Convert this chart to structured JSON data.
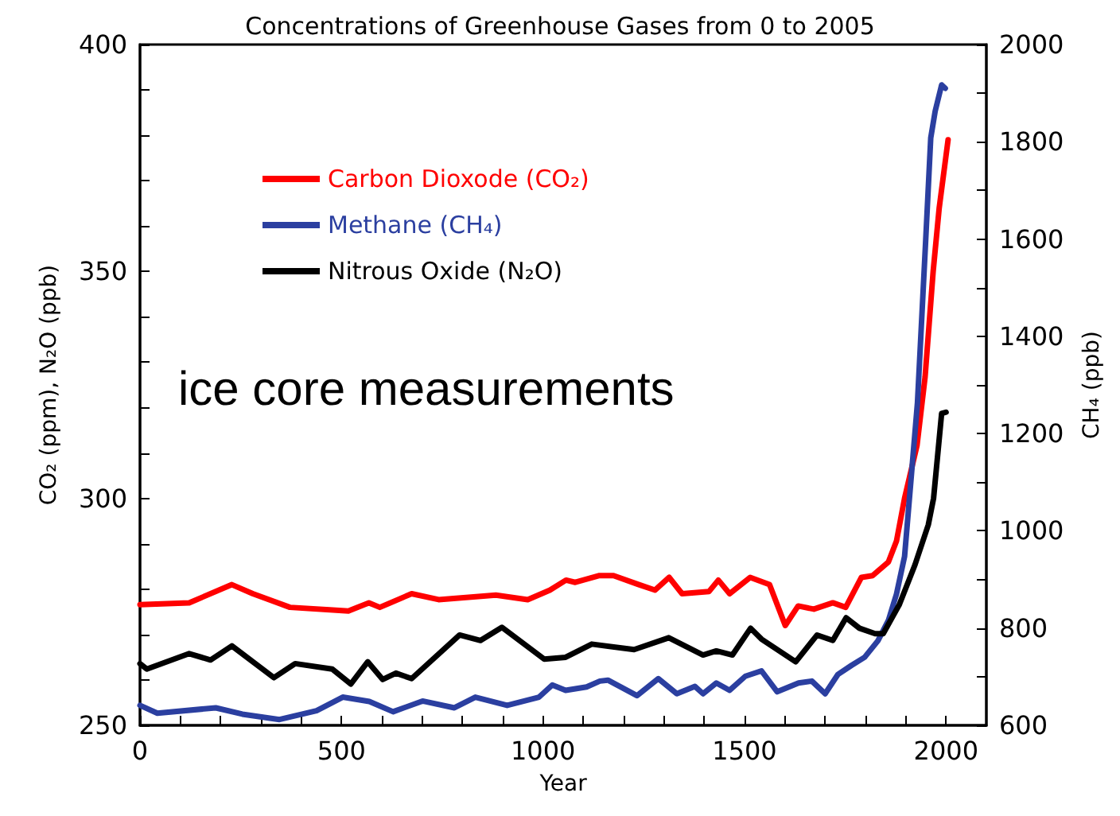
{
  "chart_data": {
    "type": "line",
    "title": "Concentrations of Greenhouse Gases from 0 to 2005",
    "xlabel": "Year",
    "ylabel": "CO₂ (ppm), N₂O (ppb)",
    "y2label": "CH₄ (ppb)",
    "annotations": [
      "ice core measurements"
    ],
    "xlim": [
      0,
      2100
    ],
    "xticks": [
      0,
      {
        "value": 100,
        "label": null
      },
      {
        "value": 200,
        "label": null
      },
      {
        "value": 300,
        "label": null
      },
      {
        "value": 400,
        "label": null
      },
      500,
      {
        "value": 600,
        "label": null
      },
      {
        "value": 700,
        "label": null
      },
      {
        "value": 800,
        "label": null
      },
      {
        "value": 900,
        "label": null
      },
      1000,
      {
        "value": 1100,
        "label": null
      },
      {
        "value": 1200,
        "label": null
      },
      {
        "value": 1300,
        "label": null
      },
      {
        "value": 1400,
        "label": null
      },
      1500,
      {
        "value": 1600,
        "label": null
      },
      {
        "value": 1700,
        "label": null
      },
      {
        "value": 1800,
        "label": null
      },
      {
        "value": 1900,
        "label": null
      },
      2000
    ],
    "ylim": [
      250,
      400
    ],
    "yticks": [
      250,
      {
        "value": 260,
        "label": null
      },
      {
        "value": 270,
        "label": null
      },
      {
        "value": 280,
        "label": null
      },
      {
        "value": 290,
        "label": null
      },
      300,
      {
        "value": 310,
        "label": null
      },
      {
        "value": 320,
        "label": null
      },
      {
        "value": 330,
        "label": null
      },
      {
        "value": 340,
        "label": null
      },
      350,
      {
        "value": 360,
        "label": null
      },
      {
        "value": 370,
        "label": null
      },
      {
        "value": 380,
        "label": null
      },
      {
        "value": 390,
        "label": null
      },
      400
    ],
    "y2lim": [
      600,
      2000
    ],
    "y2ticks": [
      600,
      {
        "value": 700,
        "label": null
      },
      800,
      {
        "value": 900,
        "label": null
      },
      1000,
      {
        "value": 1100,
        "label": null
      },
      1200,
      {
        "value": 1300,
        "label": null
      },
      1400,
      {
        "value": 1500,
        "label": null
      },
      1600,
      {
        "value": 1700,
        "label": null
      },
      1800,
      {
        "value": 1900,
        "label": null
      },
      2000
    ],
    "grid": false,
    "legend": "top left",
    "marker": "none",
    "line_style": "solid",
    "series": [
      {
        "name": "Carbon Dioxode (CO₂)",
        "color": "#ff0000",
        "x": [
          0,
          122,
          228,
          280,
          372,
          517,
          568,
          595,
          674,
          741,
          883,
          962,
          1017,
          1057,
          1080,
          1140,
          1175,
          1238,
          1278,
          1313,
          1345,
          1412,
          1435,
          1463,
          1514,
          1562,
          1601,
          1633,
          1672,
          1719,
          1751,
          1790,
          1818,
          1857,
          1877,
          1897,
          1928,
          1948,
          1968,
          1983,
          2005
        ],
        "values": [
          276.6,
          277,
          281,
          279,
          276,
          275.2,
          277,
          276,
          279,
          277.7,
          278.7,
          277.7,
          279.8,
          282,
          281.5,
          283,
          283,
          281,
          279.8,
          282.6,
          279,
          279.5,
          282,
          279,
          282.6,
          281,
          272,
          276.3,
          275.6,
          277,
          276,
          282.6,
          283,
          286,
          290.6,
          300,
          311.7,
          326.8,
          350,
          364,
          379
        ]
      },
      {
        "name": "Methane (CH₄)",
        "color": "#2b3fa0",
        "axis": "y2",
        "x": [
          0,
          43,
          188,
          254,
          346,
          438,
          503,
          569,
          628,
          701,
          780,
          832,
          911,
          990,
          1023,
          1056,
          1108,
          1141,
          1161,
          1233,
          1286,
          1332,
          1377,
          1397,
          1430,
          1463,
          1502,
          1542,
          1581,
          1634,
          1667,
          1700,
          1732,
          1765,
          1798,
          1831,
          1857,
          1877,
          1897,
          1929,
          1949,
          1962,
          1973,
          1989,
          1998
        ],
        "values": [
          641,
          625,
          636,
          623,
          612,
          630,
          658,
          649,
          628,
          650,
          636,
          658,
          641,
          658,
          683,
          672,
          679,
          691,
          693,
          661,
          696,
          665,
          680,
          665,
          687,
          672,
          701,
          712,
          669,
          687,
          691,
          665,
          705,
          723,
          740,
          774,
          816,
          870,
          947,
          1263,
          1590,
          1808,
          1863,
          1917,
          1910
        ]
      },
      {
        "name": "Nitrous Oxide (N₂O)",
        "color": "#000000",
        "x": [
          0,
          17,
          122,
          175,
          228,
          332,
          385,
          477,
          523,
          565,
          602,
          635,
          674,
          793,
          845,
          898,
          1003,
          1056,
          1121,
          1226,
          1312,
          1397,
          1430,
          1470,
          1515,
          1542,
          1627,
          1680,
          1719,
          1752,
          1785,
          1824,
          1844,
          1884,
          1923,
          1956,
          1969,
          1989,
          2000
        ],
        "values": [
          263.6,
          262.4,
          265.8,
          264.4,
          267.5,
          260.5,
          263.6,
          262.4,
          259.1,
          264,
          260.1,
          261.5,
          260.3,
          269.9,
          268.7,
          271.6,
          264.6,
          265,
          267.9,
          266.7,
          269.3,
          265.5,
          266.4,
          265.5,
          271.4,
          269,
          264,
          269.9,
          268.7,
          273.7,
          271.4,
          270.2,
          270.2,
          276.6,
          285.4,
          294.2,
          300,
          318.7,
          319
        ]
      }
    ]
  }
}
